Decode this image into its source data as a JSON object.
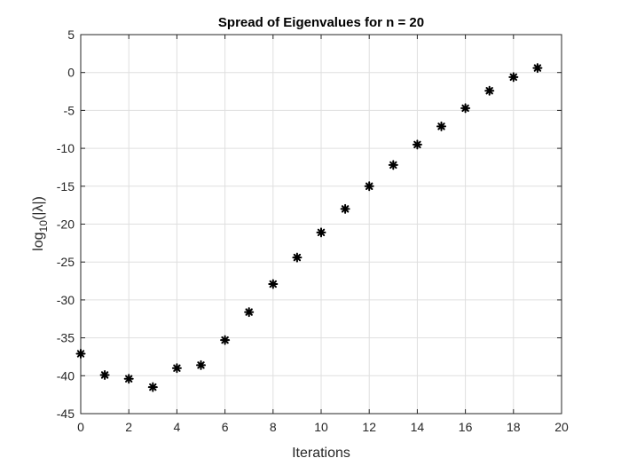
{
  "chart_data": {
    "type": "scatter",
    "title": "Spread of Eigenvalues for n = 20",
    "xlabel": "Iterations",
    "ylabel_base": "log",
    "ylabel_subscript": "10",
    "ylabel_rest": "(|λ|)",
    "xlim": [
      0,
      20
    ],
    "ylim": [
      -45,
      5
    ],
    "xticks": [
      0,
      2,
      4,
      6,
      8,
      10,
      12,
      14,
      16,
      18,
      20
    ],
    "yticks": [
      5,
      0,
      -5,
      -10,
      -15,
      -20,
      -25,
      -30,
      -35,
      -40,
      -45
    ],
    "grid": true,
    "marker": "asterisk",
    "marker_color": "#000000",
    "series": [
      {
        "x": [
          0,
          1,
          2,
          3,
          4,
          5,
          6,
          7,
          8,
          9,
          10,
          11,
          12,
          13,
          14,
          15,
          16,
          17,
          18,
          19
        ],
        "y": [
          -37.1,
          -39.9,
          -40.4,
          -41.5,
          -39.0,
          -38.6,
          -35.3,
          -31.6,
          -27.9,
          -24.4,
          -21.1,
          -18.0,
          -15.0,
          -12.2,
          -9.5,
          -7.1,
          -4.7,
          -2.4,
          -0.6,
          0.6
        ]
      }
    ]
  }
}
